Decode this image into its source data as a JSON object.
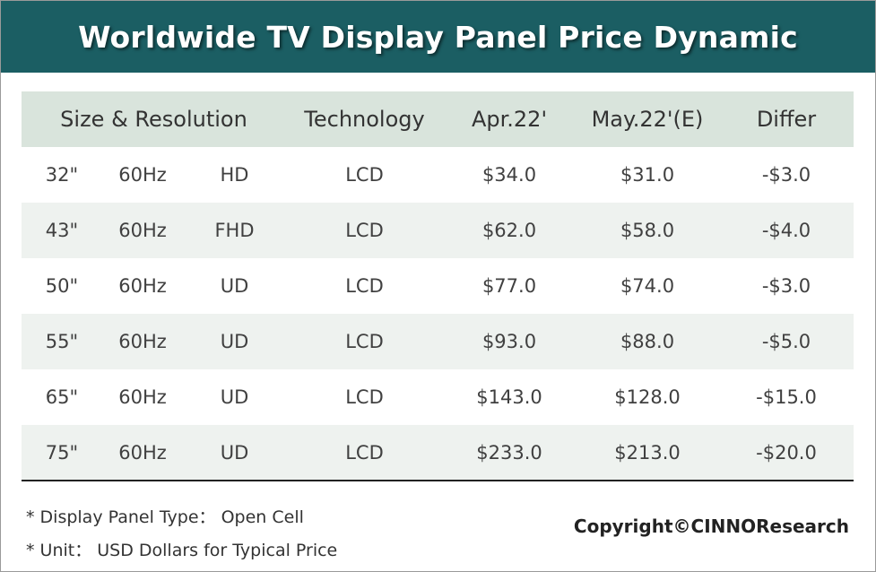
{
  "title": "Worldwide TV Display Panel Price Dynamic",
  "chart_data": {
    "type": "table",
    "columns": [
      "Size & Resolution",
      "Technology",
      "Apr.22'",
      "May.22'(E)",
      "Differ"
    ],
    "rows": [
      {
        "size": "32\"",
        "refresh": "60Hz",
        "resolution": "HD",
        "technology": "LCD",
        "apr": "$34.0",
        "may": "$31.0",
        "differ": "-$3.0"
      },
      {
        "size": "43\"",
        "refresh": "60Hz",
        "resolution": "FHD",
        "technology": "LCD",
        "apr": "$62.0",
        "may": "$58.0",
        "differ": "-$4.0"
      },
      {
        "size": "50\"",
        "refresh": "60Hz",
        "resolution": "UD",
        "technology": "LCD",
        "apr": "$77.0",
        "may": "$74.0",
        "differ": "-$3.0"
      },
      {
        "size": "55\"",
        "refresh": "60Hz",
        "resolution": "UD",
        "technology": "LCD",
        "apr": "$93.0",
        "may": "$88.0",
        "differ": "-$5.0"
      },
      {
        "size": "65\"",
        "refresh": "60Hz",
        "resolution": "UD",
        "technology": "LCD",
        "apr": "$143.0",
        "may": "$128.0",
        "differ": "-$15.0"
      },
      {
        "size": "75\"",
        "refresh": "60Hz",
        "resolution": "UD",
        "technology": "LCD",
        "apr": "$233.0",
        "may": "$213.0",
        "differ": "-$20.0"
      }
    ]
  },
  "notes": {
    "panel_type": "* Display Panel Type： Open Cell",
    "unit": "* Unit： USD Dollars for Typical Price"
  },
  "copyright": "Copyright©CINNOResearch",
  "colors": {
    "title_bg": "#1b5e63",
    "header_bg": "#d9e4dc",
    "stripe_bg": "#eef2ef"
  }
}
